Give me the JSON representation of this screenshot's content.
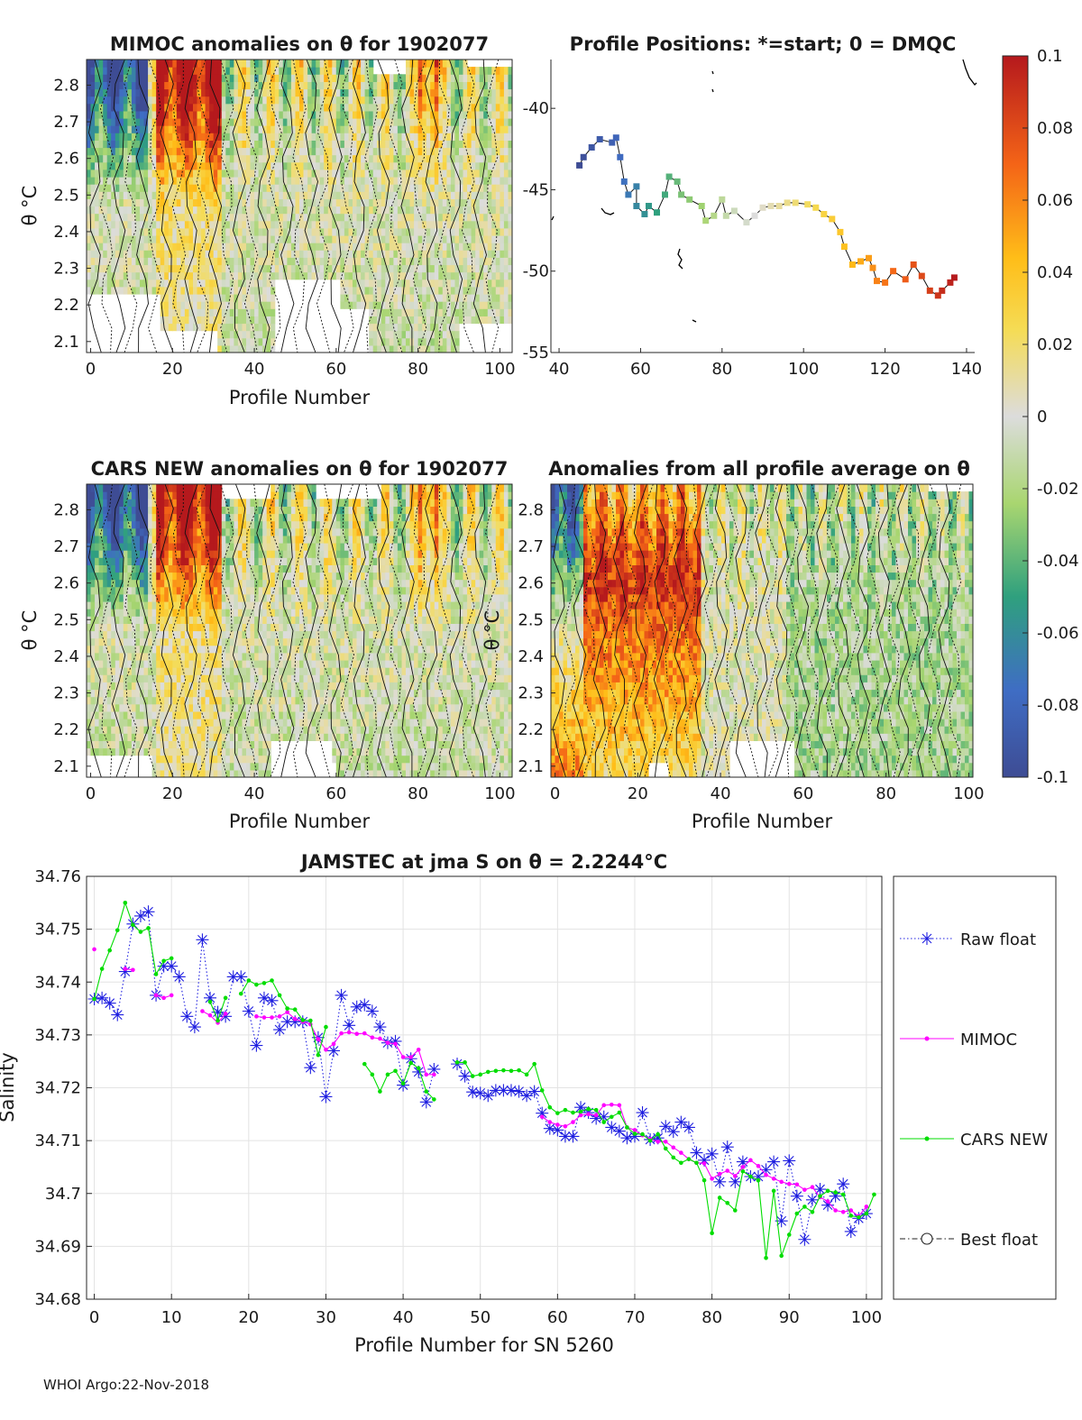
{
  "footer": "WHOI Argo:22-Nov-2018",
  "colorbar": {
    "ticks": [
      "0.1",
      "0.08",
      "0.06",
      "0.04",
      "0.02",
      "0",
      "-0.02",
      "-0.04",
      "-0.06",
      "-0.08",
      "-0.1"
    ],
    "range": [
      -0.1,
      0.1
    ]
  },
  "chart_data": [
    {
      "id": "mimoc",
      "type": "heatmap",
      "title": "MIMOC anomalies on θ  for 1902077",
      "xlabel": "Profile Number",
      "ylabel": "θ °C",
      "xlim": [
        -1,
        103
      ],
      "ylim": [
        2.07,
        2.87
      ],
      "xticks": [
        "0",
        "20",
        "40",
        "60",
        "80",
        "100"
      ],
      "yticks": [
        "2.8",
        "2.7",
        "2.6",
        "2.5",
        "2.4",
        "2.3",
        "2.2",
        "2.1"
      ]
    },
    {
      "id": "positions",
      "type": "scatter",
      "title": "Profile Positions: *=start; 0 = DMQC",
      "xlim": [
        38,
        142
      ],
      "ylim": [
        -55,
        -37
      ],
      "xticks": [
        "40",
        "60",
        "80",
        "100",
        "120",
        "140"
      ],
      "yticks": [
        "-40",
        "-45",
        "-50",
        "-55"
      ],
      "track": [
        [
          45,
          -43.5
        ],
        [
          46,
          -43.0
        ],
        [
          48,
          -42.4
        ],
        [
          50,
          -41.9
        ],
        [
          53,
          -42.1
        ],
        [
          54,
          -41.8
        ],
        [
          55,
          -43.0
        ],
        [
          56,
          -44.5
        ],
        [
          57,
          -45.3
        ],
        [
          59,
          -44.8
        ],
        [
          59,
          -46.0
        ],
        [
          61,
          -46.5
        ],
        [
          62,
          -46.0
        ],
        [
          64,
          -46.4
        ],
        [
          66,
          -45.3
        ],
        [
          67,
          -44.2
        ],
        [
          69,
          -44.5
        ],
        [
          70,
          -45.3
        ],
        [
          72,
          -45.6
        ],
        [
          75,
          -46.0
        ],
        [
          76,
          -46.9
        ],
        [
          78,
          -46.6
        ],
        [
          80,
          -45.6
        ],
        [
          81,
          -46.6
        ],
        [
          83,
          -46.3
        ],
        [
          86,
          -47.0
        ],
        [
          88,
          -46.6
        ],
        [
          90,
          -46.1
        ],
        [
          92,
          -46.0
        ],
        [
          94,
          -46.0
        ],
        [
          96,
          -45.8
        ],
        [
          98,
          -45.8
        ],
        [
          101,
          -45.9
        ],
        [
          103,
          -46.1
        ],
        [
          105,
          -46.5
        ],
        [
          107,
          -46.8
        ],
        [
          109,
          -47.6
        ],
        [
          110,
          -48.5
        ],
        [
          112,
          -49.6
        ],
        [
          114,
          -49.4
        ],
        [
          116,
          -49.2
        ],
        [
          117,
          -49.8
        ],
        [
          118,
          -50.6
        ],
        [
          120,
          -50.7
        ],
        [
          122,
          -50.0
        ],
        [
          125,
          -50.5
        ],
        [
          127,
          -49.6
        ],
        [
          129,
          -50.3
        ],
        [
          131,
          -51.2
        ],
        [
          133,
          -51.5
        ],
        [
          134,
          -51.2
        ],
        [
          136,
          -50.7
        ],
        [
          137,
          -50.4
        ]
      ]
    },
    {
      "id": "cars",
      "type": "heatmap",
      "title": "CARS NEW anomalies on θ for 1902077",
      "xlabel": "Profile Number",
      "ylabel": "θ °C",
      "xlim": [
        -1,
        103
      ],
      "ylim": [
        2.07,
        2.87
      ],
      "xticks": [
        "0",
        "20",
        "40",
        "60",
        "80",
        "100"
      ],
      "yticks": [
        "2.8",
        "2.7",
        "2.6",
        "2.5",
        "2.4",
        "2.3",
        "2.2",
        "2.1"
      ]
    },
    {
      "id": "allavg",
      "type": "heatmap",
      "title": "Anomalies from all profile average on θ",
      "xlabel": "Profile Number",
      "ylabel": "θ °C",
      "xlim": [
        -1,
        101
      ],
      "ylim": [
        2.07,
        2.87
      ],
      "xticks": [
        "0",
        "20",
        "40",
        "60",
        "80",
        "100"
      ],
      "yticks": [
        "2.8",
        "2.7",
        "2.6",
        "2.5",
        "2.4",
        "2.3",
        "2.2",
        "2.1"
      ]
    },
    {
      "id": "salinity",
      "type": "line",
      "title": "JAMSTEC at jma S on θ = 2.2244°C",
      "xlabel": "Profile Number for SN 5260",
      "ylabel": "Salinity",
      "xlim": [
        -1,
        102
      ],
      "ylim": [
        34.68,
        34.76
      ],
      "xticks": [
        "0",
        "10",
        "20",
        "30",
        "40",
        "50",
        "60",
        "70",
        "80",
        "90",
        "100"
      ],
      "yticks": [
        "34.76",
        "34.75",
        "34.74",
        "34.73",
        "34.72",
        "34.71",
        "34.7",
        "34.69",
        "34.68"
      ],
      "series": [
        {
          "name": "Raw float",
          "color": "#1f1fe0",
          "values": [
            34.7368,
            34.737,
            34.736,
            34.7338,
            34.742,
            34.751,
            34.7525,
            34.7533,
            34.7375,
            34.743,
            34.743,
            34.741,
            34.7335,
            34.7315,
            34.748,
            34.737,
            34.7343,
            34.7335,
            34.741,
            34.741,
            34.7345,
            34.728,
            34.737,
            34.7365,
            34.731,
            34.7325,
            34.7325,
            34.7325,
            34.7238,
            34.7295,
            34.7183,
            34.727,
            34.7375,
            34.7318,
            34.7353,
            34.7357,
            34.7345,
            34.7315,
            34.7285,
            34.7288,
            34.7205,
            34.7255,
            34.723,
            34.7173,
            34.7235,
            null,
            null,
            34.7245,
            34.7222,
            34.7192,
            34.719,
            34.7185,
            34.7195,
            34.7195,
            34.7195,
            34.7193,
            34.7185,
            34.7193,
            34.7152,
            34.7123,
            34.712,
            34.7108,
            34.7108,
            34.7163,
            34.7153,
            34.7142,
            34.7145,
            34.7125,
            34.7118,
            34.7105,
            34.7108,
            34.7153,
            34.7102,
            34.7105,
            34.7127,
            34.7117,
            34.7135,
            34.7125,
            34.7077,
            34.7063,
            34.7075,
            34.7022,
            34.7088,
            34.7022,
            34.706,
            34.7032,
            34.7032,
            34.7045,
            34.706,
            34.6948,
            34.7062,
            34.6995,
            34.6913,
            34.6988,
            34.7008,
            34.6978,
            34.6995,
            34.7018,
            34.6928,
            34.6953,
            34.6962
          ]
        },
        {
          "name": "MIMOC",
          "color": "#ff00ff",
          "values": [
            34.7462,
            null,
            null,
            null,
            34.7425,
            34.7423,
            null,
            null,
            34.7375,
            34.737,
            34.7375,
            null,
            null,
            null,
            34.7345,
            34.7337,
            34.7323,
            34.734,
            null,
            null,
            null,
            34.7335,
            34.7333,
            34.7333,
            34.7335,
            34.7343,
            34.733,
            34.7325,
            34.732,
            34.7292,
            34.7272,
            34.7283,
            34.7303,
            34.7305,
            34.7302,
            34.7303,
            34.7295,
            34.7293,
            34.7285,
            34.7283,
            34.7258,
            34.7258,
            34.7272,
            34.7225,
            34.7225,
            null,
            null,
            null,
            null,
            null,
            null,
            null,
            null,
            null,
            null,
            null,
            null,
            null,
            34.7145,
            34.7135,
            34.713,
            34.7127,
            34.7135,
            34.7148,
            34.715,
            34.7148,
            34.7167,
            34.7168,
            34.7167,
            34.7125,
            34.712,
            34.711,
            34.7103,
            34.7098,
            34.7098,
            34.7087,
            34.7077,
            34.7065,
            34.7058,
            34.7057,
            34.7028,
            34.7037,
            34.7043,
            34.7033,
            34.705,
            34.7063,
            34.7052,
            34.7035,
            34.7028,
            34.7022,
            34.7018,
            34.7017,
            34.7007,
            34.7012,
            34.6993,
            34.6985,
            34.6968,
            34.6965,
            34.6968,
            34.6957,
            34.6975
          ]
        },
        {
          "name": "CARS NEW",
          "color": "#00dd00",
          "values": [
            34.7368,
            34.7425,
            34.746,
            34.7498,
            34.755,
            34.7508,
            34.7495,
            34.7502,
            34.7415,
            34.744,
            34.7445,
            null,
            null,
            null,
            null,
            34.7363,
            34.7327,
            34.737,
            null,
            34.7378,
            34.7403,
            34.7395,
            34.7398,
            34.7403,
            34.7375,
            34.735,
            34.7348,
            34.7328,
            34.7327,
            34.7262,
            34.7315,
            null,
            null,
            null,
            null,
            34.7245,
            34.7225,
            34.7193,
            34.7225,
            34.7232,
            34.7208,
            34.7247,
            34.7237,
            34.7193,
            34.7178,
            null,
            null,
            34.7248,
            34.7248,
            34.7222,
            34.7225,
            34.723,
            34.7232,
            34.7233,
            34.7232,
            34.7233,
            34.7225,
            34.7245,
            34.7195,
            34.7163,
            34.7152,
            34.7158,
            34.7153,
            34.7155,
            34.716,
            34.7158,
            34.7135,
            34.7145,
            34.7153,
            34.7125,
            34.7113,
            34.7112,
            34.71,
            34.7112,
            34.7085,
            34.7068,
            34.7058,
            34.7065,
            34.7058,
            34.7025,
            34.6925,
            34.6992,
            34.6982,
            34.6968,
            34.7042,
            34.7032,
            34.7025,
            34.6878,
            34.7005,
            34.6882,
            34.6922,
            34.6962,
            34.6975,
            34.6965,
            34.6995,
            34.7005,
            34.7002,
            34.6998,
            34.6958,
            34.6955,
            34.6962,
            34.6998
          ]
        },
        {
          "name": "Best float",
          "color": "#222222",
          "values": []
        }
      ]
    }
  ]
}
